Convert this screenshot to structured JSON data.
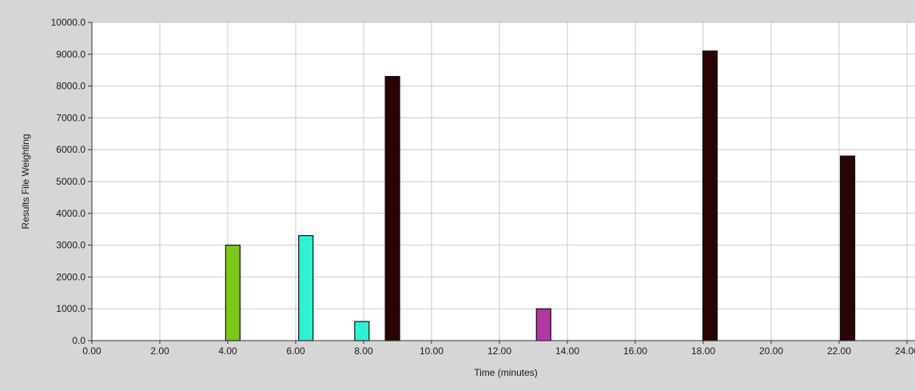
{
  "chart_data": {
    "type": "bar",
    "xlabel": "Time (minutes)",
    "ylabel": "Results File Weighting",
    "xlim": [
      0,
      24
    ],
    "ylim": [
      0,
      10000
    ],
    "grid": true,
    "x_ticks": [
      "0.00",
      "2.00",
      "4.00",
      "6.00",
      "8.00",
      "10.00",
      "12.00",
      "14.00",
      "16.00",
      "18.00",
      "20.00",
      "22.00",
      "24.00"
    ],
    "y_ticks": [
      "0.0",
      "1000.0",
      "2000.0",
      "3000.0",
      "4000.0",
      "5000.0",
      "6000.0",
      "7000.0",
      "8000.0",
      "9000.0",
      "10000.0"
    ],
    "bars": [
      {
        "x": 4.15,
        "value": 3000,
        "color": "#7dc61e"
      },
      {
        "x": 6.3,
        "value": 3300,
        "color": "#2ef2d2"
      },
      {
        "x": 7.95,
        "value": 600,
        "color": "#2ef2d2"
      },
      {
        "x": 8.85,
        "value": 8300,
        "color": "#2a0404"
      },
      {
        "x": 13.3,
        "value": 1000,
        "color": "#b03aa0"
      },
      {
        "x": 18.2,
        "value": 9100,
        "color": "#2a0404"
      },
      {
        "x": 22.25,
        "value": 5800,
        "color": "#2a0404"
      }
    ]
  }
}
